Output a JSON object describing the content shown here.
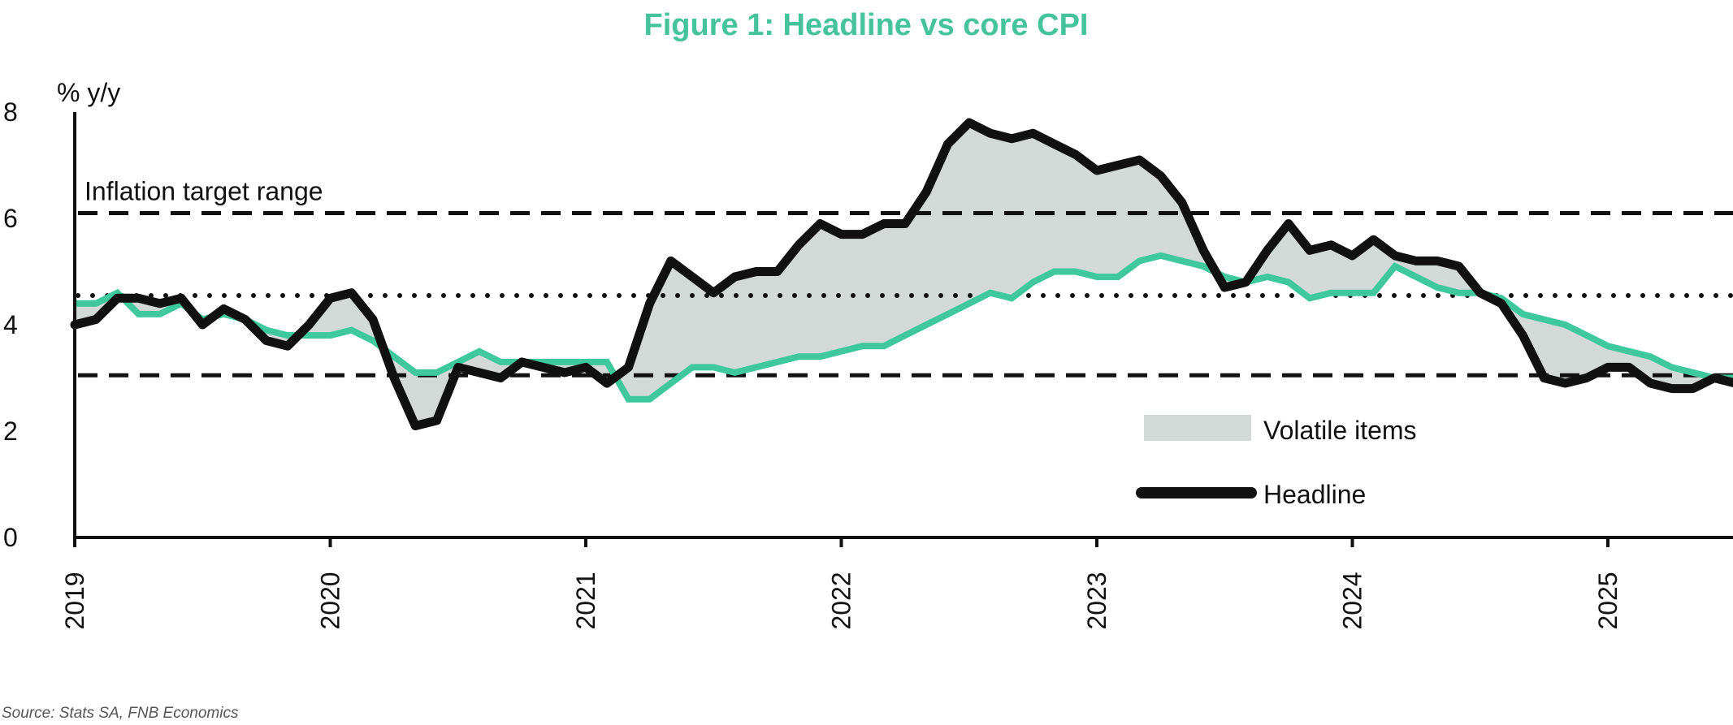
{
  "chart_data": {
    "type": "line",
    "title": "Figure 1: Headline vs core CPI",
    "ylabel": "% y/y",
    "xlabel": "",
    "ylim": [
      0,
      8
    ],
    "xlim": [
      2019.0,
      2025.5
    ],
    "yticks": [
      0,
      2,
      4,
      6,
      8
    ],
    "ytick_labels": [
      "0",
      "2",
      "4",
      "6",
      "8"
    ],
    "xticks": [
      2019,
      2020,
      2021,
      2022,
      2023,
      2024,
      2025
    ],
    "xtick_labels": [
      "2019",
      "2020",
      "2021",
      "2022",
      "2023",
      "2024",
      "2025"
    ],
    "grid": false,
    "legend_position": "bottom-right",
    "legend": [
      {
        "name": "Volatile items",
        "kind": "area",
        "color": "#d3d9d7"
      },
      {
        "name": "Headline",
        "kind": "line",
        "color": "#111111"
      }
    ],
    "reference_lines": [
      {
        "name": "Inflation target range upper",
        "y": 6.1,
        "style": "dashed",
        "label": "Inflation target range"
      },
      {
        "name": "Inflation target range lower",
        "y": 3.05,
        "style": "dashed"
      },
      {
        "name": "Target midpoint",
        "y": 4.55,
        "style": "dotted"
      }
    ],
    "series": [
      {
        "name": "Headline",
        "color": "#111111",
        "x": [
          2019.0,
          2019.083,
          2019.167,
          2019.25,
          2019.333,
          2019.417,
          2019.5,
          2019.583,
          2019.667,
          2019.75,
          2019.833,
          2019.917,
          2020.0,
          2020.083,
          2020.167,
          2020.25,
          2020.333,
          2020.417,
          2020.5,
          2020.583,
          2020.667,
          2020.75,
          2020.833,
          2020.917,
          2021.0,
          2021.083,
          2021.167,
          2021.25,
          2021.333,
          2021.417,
          2021.5,
          2021.583,
          2021.667,
          2021.75,
          2021.833,
          2021.917,
          2022.0,
          2022.083,
          2022.167,
          2022.25,
          2022.333,
          2022.417,
          2022.5,
          2022.583,
          2022.667,
          2022.75,
          2022.833,
          2022.917,
          2023.0,
          2023.083,
          2023.167,
          2023.25,
          2023.333,
          2023.417,
          2023.5,
          2023.583,
          2023.667,
          2023.75,
          2023.833,
          2023.917,
          2024.0,
          2024.083,
          2024.167,
          2024.25,
          2024.333,
          2024.417,
          2024.5,
          2024.583,
          2024.667,
          2024.75,
          2024.833,
          2024.917,
          2025.0,
          2025.083,
          2025.167,
          2025.25,
          2025.333,
          2025.417,
          2025.5
        ],
        "values": [
          4.0,
          4.1,
          4.5,
          4.5,
          4.4,
          4.5,
          4.0,
          4.3,
          4.1,
          3.7,
          3.6,
          4.0,
          4.5,
          4.6,
          4.1,
          3.0,
          2.1,
          2.2,
          3.2,
          3.1,
          3.0,
          3.3,
          3.2,
          3.1,
          3.2,
          2.9,
          3.2,
          4.4,
          5.2,
          4.9,
          4.6,
          4.9,
          5.0,
          5.0,
          5.5,
          5.9,
          5.7,
          5.7,
          5.9,
          5.9,
          6.5,
          7.4,
          7.8,
          7.6,
          7.5,
          7.6,
          7.4,
          7.2,
          6.9,
          7.0,
          7.1,
          6.8,
          6.3,
          5.4,
          4.7,
          4.8,
          5.4,
          5.9,
          5.4,
          5.5,
          5.3,
          5.6,
          5.3,
          5.2,
          5.2,
          5.1,
          4.6,
          4.4,
          3.8,
          3.0,
          2.9,
          3.0,
          3.2,
          3.2,
          2.9,
          2.8,
          2.8,
          3.0,
          2.9
        ]
      },
      {
        "name": "Core",
        "color": "#3fc89b",
        "x": [
          2019.0,
          2019.083,
          2019.167,
          2019.25,
          2019.333,
          2019.417,
          2019.5,
          2019.583,
          2019.667,
          2019.75,
          2019.833,
          2019.917,
          2020.0,
          2020.083,
          2020.167,
          2020.25,
          2020.333,
          2020.417,
          2020.5,
          2020.583,
          2020.667,
          2020.75,
          2020.833,
          2020.917,
          2021.0,
          2021.083,
          2021.167,
          2021.25,
          2021.333,
          2021.417,
          2021.5,
          2021.583,
          2021.667,
          2021.75,
          2021.833,
          2021.917,
          2022.0,
          2022.083,
          2022.167,
          2022.25,
          2022.333,
          2022.417,
          2022.5,
          2022.583,
          2022.667,
          2022.75,
          2022.833,
          2022.917,
          2023.0,
          2023.083,
          2023.167,
          2023.25,
          2023.333,
          2023.417,
          2023.5,
          2023.583,
          2023.667,
          2023.75,
          2023.833,
          2023.917,
          2024.0,
          2024.083,
          2024.167,
          2024.25,
          2024.333,
          2024.417,
          2024.5,
          2024.583,
          2024.667,
          2024.75,
          2024.833,
          2024.917,
          2025.0,
          2025.083,
          2025.167,
          2025.25,
          2025.333,
          2025.417,
          2025.5
        ],
        "values": [
          4.4,
          4.4,
          4.6,
          4.2,
          4.2,
          4.4,
          4.1,
          4.2,
          4.1,
          3.9,
          3.8,
          3.8,
          3.8,
          3.9,
          3.7,
          3.4,
          3.1,
          3.1,
          3.3,
          3.5,
          3.3,
          3.3,
          3.3,
          3.3,
          3.3,
          3.3,
          2.6,
          2.6,
          2.9,
          3.2,
          3.2,
          3.1,
          3.2,
          3.3,
          3.4,
          3.4,
          3.5,
          3.6,
          3.6,
          3.8,
          4.0,
          4.2,
          4.4,
          4.6,
          4.5,
          4.8,
          5.0,
          5.0,
          4.9,
          4.9,
          5.2,
          5.3,
          5.2,
          5.1,
          4.9,
          4.8,
          4.9,
          4.8,
          4.5,
          4.6,
          4.6,
          4.6,
          5.1,
          4.9,
          4.7,
          4.6,
          4.6,
          4.5,
          4.2,
          4.1,
          4.0,
          3.8,
          3.6,
          3.5,
          3.4,
          3.2,
          3.1,
          3.0,
          3.0
        ]
      }
    ],
    "source": "Source: Stats SA, FNB Economics"
  }
}
